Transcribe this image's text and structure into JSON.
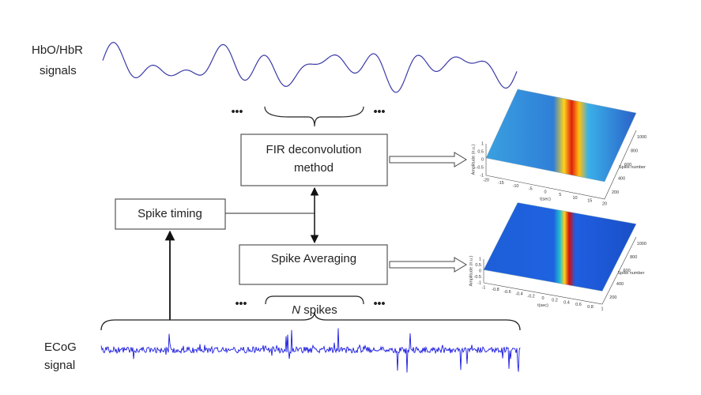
{
  "labels": {
    "hemo": [
      "HbO/HbR",
      "signals"
    ],
    "ecog": [
      "ECoG",
      "signal"
    ]
  },
  "boxes": {
    "fir": [
      "FIR deconvolution",
      "method"
    ],
    "timing": "Spike timing",
    "averaging": "Spike Averaging"
  },
  "n_spikes": {
    "n": "N",
    "text": "spikes"
  },
  "ellipsis": "•••",
  "plots": [
    {
      "z_label": "Amplitude (n.u.)",
      "x_label": "t(sec)",
      "y_label": "Spike number",
      "xticks": [
        -20,
        -15,
        -10,
        -5,
        0,
        5,
        10,
        15,
        20
      ],
      "yticks": [
        200,
        400,
        600,
        800,
        1000
      ],
      "zticks": [
        1,
        0.5,
        0,
        -0.5,
        -1
      ]
    },
    {
      "z_label": "Amplitude (n.u.)",
      "x_label": "t(sec)",
      "y_label": "Spike number",
      "xticks": [
        -1,
        -0.8,
        -0.6,
        -0.4,
        -0.2,
        0,
        0.2,
        0.4,
        0.6,
        0.8,
        1
      ],
      "yticks": [
        200,
        400,
        600,
        800,
        1000
      ],
      "zticks": [
        1,
        0.5,
        0,
        -0.5,
        -1
      ]
    }
  ]
}
